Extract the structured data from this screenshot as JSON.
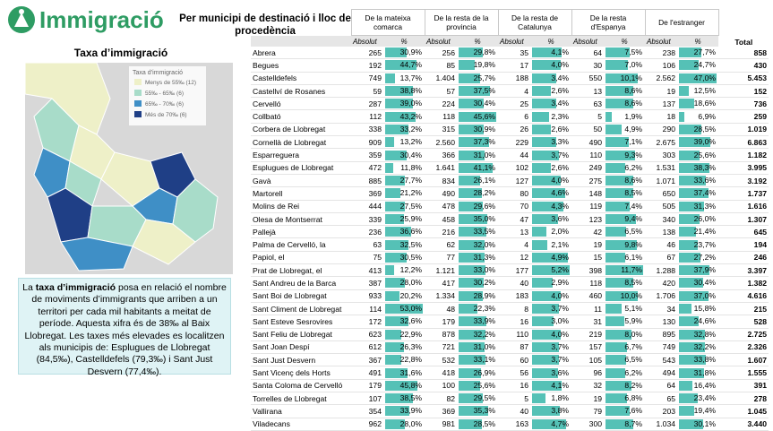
{
  "logo": "Immigració",
  "map": {
    "title": "Taxa d’immigració",
    "legend": {
      "title": "Taxa d’immigració",
      "items": [
        "Menys de 55‰ (12)",
        "55‰ - 65‰ (6)",
        "65‰ - 70‰ (6)",
        "Més de 70‰ (6)"
      ]
    }
  },
  "note": {
    "before": "La ",
    "bold": "taxa d’immigració",
    "after": " posa en relació el nombre de moviments d’immigrants que arriben a un territori per cada mil habitants a meitat de període. Aquesta xifra és de 38‰ al Baix Llobregat. Les taxes més elevades es localitzen als municipis de: Esplugues de Llobregat (84,5‰), Castelldefels (79,3‰) i Sant Just Desvern (77,4‰)."
  },
  "table": {
    "title": "Per municipi de destinació i lloc de procedència",
    "groups": [
      "De la mateixa comarca",
      "De la resta de la provincia",
      "De la resta de Catalunya",
      "De la resta d'Espanya",
      "De l'estranger"
    ],
    "total": "Total",
    "sub": [
      "Absolut",
      "%"
    ],
    "rows": [
      [
        "Abrera",
        "265",
        "30,9%",
        "256",
        "29,8%",
        "35",
        "4,1%",
        "64",
        "7,5%",
        "238",
        "27,7%",
        "858"
      ],
      [
        "Begues",
        "192",
        "44,7%",
        "85",
        "19,8%",
        "17",
        "4,0%",
        "30",
        "7,0%",
        "106",
        "24,7%",
        "430"
      ],
      [
        "Castelldefels",
        "749",
        "13,7%",
        "1.404",
        "25,7%",
        "188",
        "3,4%",
        "550",
        "10,1%",
        "2.562",
        "47,0%",
        "5.453"
      ],
      [
        "Castellví de Rosanes",
        "59",
        "38,8%",
        "57",
        "37,5%",
        "4",
        "2,6%",
        "13",
        "8,6%",
        "19",
        "12,5%",
        "152"
      ],
      [
        "Cervelló",
        "287",
        "39,0%",
        "224",
        "30,4%",
        "25",
        "3,4%",
        "63",
        "8,6%",
        "137",
        "18,6%",
        "736"
      ],
      [
        "Collbató",
        "112",
        "43,2%",
        "118",
        "45,6%",
        "6",
        "2,3%",
        "5",
        "1,9%",
        "18",
        "6,9%",
        "259"
      ],
      [
        "Corbera de Llobregat",
        "338",
        "33,2%",
        "315",
        "30,9%",
        "26",
        "2,6%",
        "50",
        "4,9%",
        "290",
        "28,5%",
        "1.019"
      ],
      [
        "Cornellà de Llobregat",
        "909",
        "13,2%",
        "2.560",
        "37,3%",
        "229",
        "3,3%",
        "490",
        "7,1%",
        "2.675",
        "39,0%",
        "6.863"
      ],
      [
        "Esparreguera",
        "359",
        "30,4%",
        "366",
        "31,0%",
        "44",
        "3,7%",
        "110",
        "9,3%",
        "303",
        "25,6%",
        "1.182"
      ],
      [
        "Esplugues de Llobregat",
        "472",
        "11,8%",
        "1.641",
        "41,1%",
        "102",
        "2,6%",
        "249",
        "6,2%",
        "1.531",
        "38,3%",
        "3.995"
      ],
      [
        "Gavà",
        "885",
        "27,7%",
        "834",
        "26,1%",
        "127",
        "4,0%",
        "275",
        "8,6%",
        "1.071",
        "33,6%",
        "3.192"
      ],
      [
        "Martorell",
        "369",
        "21,2%",
        "490",
        "28,2%",
        "80",
        "4,6%",
        "148",
        "8,5%",
        "650",
        "37,4%",
        "1.737"
      ],
      [
        "Molins de Rei",
        "444",
        "27,5%",
        "478",
        "29,6%",
        "70",
        "4,3%",
        "119",
        "7,4%",
        "505",
        "31,3%",
        "1.616"
      ],
      [
        "Olesa de Montserrat",
        "339",
        "25,9%",
        "458",
        "35,0%",
        "47",
        "3,6%",
        "123",
        "9,4%",
        "340",
        "26,0%",
        "1.307"
      ],
      [
        "Pallejà",
        "236",
        "36,6%",
        "216",
        "33,5%",
        "13",
        "2,0%",
        "42",
        "6,5%",
        "138",
        "21,4%",
        "645"
      ],
      [
        "Palma de Cervelló, la",
        "63",
        "32,5%",
        "62",
        "32,0%",
        "4",
        "2,1%",
        "19",
        "9,8%",
        "46",
        "23,7%",
        "194"
      ],
      [
        "Papiol, el",
        "75",
        "30,5%",
        "77",
        "31,3%",
        "12",
        "4,9%",
        "15",
        "6,1%",
        "67",
        "27,2%",
        "246"
      ],
      [
        "Prat de Llobregat, el",
        "413",
        "12,2%",
        "1.121",
        "33,0%",
        "177",
        "5,2%",
        "398",
        "11,7%",
        "1.288",
        "37,9%",
        "3.397"
      ],
      [
        "Sant Andreu de la Barca",
        "387",
        "28,0%",
        "417",
        "30,2%",
        "40",
        "2,9%",
        "118",
        "8,5%",
        "420",
        "30,4%",
        "1.382"
      ],
      [
        "Sant Boi de Llobregat",
        "933",
        "20,2%",
        "1.334",
        "28,9%",
        "183",
        "4,0%",
        "460",
        "10,0%",
        "1.706",
        "37,0%",
        "4.616"
      ],
      [
        "Sant Climent de Llobregat",
        "114",
        "53,0%",
        "48",
        "22,3%",
        "8",
        "3,7%",
        "11",
        "5,1%",
        "34",
        "15,8%",
        "215"
      ],
      [
        "Sant Esteve Sesrovires",
        "172",
        "32,6%",
        "179",
        "33,9%",
        "16",
        "3,0%",
        "31",
        "5,9%",
        "130",
        "24,6%",
        "528"
      ],
      [
        "Sant Feliu de Llobregat",
        "623",
        "22,9%",
        "878",
        "32,2%",
        "110",
        "4,0%",
        "219",
        "8,0%",
        "895",
        "32,8%",
        "2.725"
      ],
      [
        "Sant Joan Despí",
        "612",
        "26,3%",
        "721",
        "31,0%",
        "87",
        "3,7%",
        "157",
        "6,7%",
        "749",
        "32,2%",
        "2.326"
      ],
      [
        "Sant Just Desvern",
        "367",
        "22,8%",
        "532",
        "33,1%",
        "60",
        "3,7%",
        "105",
        "6,5%",
        "543",
        "33,8%",
        "1.607"
      ],
      [
        "Sant Vicenç dels Horts",
        "491",
        "31,6%",
        "418",
        "26,9%",
        "56",
        "3,6%",
        "96",
        "6,2%",
        "494",
        "31,8%",
        "1.555"
      ],
      [
        "Santa Coloma de Cervelló",
        "179",
        "45,8%",
        "100",
        "25,6%",
        "16",
        "4,1%",
        "32",
        "8,2%",
        "64",
        "16,4%",
        "391"
      ],
      [
        "Torrelles de Llobregat",
        "107",
        "38,5%",
        "82",
        "29,5%",
        "5",
        "1,8%",
        "19",
        "6,8%",
        "65",
        "23,4%",
        "278"
      ],
      [
        "Vallirana",
        "354",
        "33,9%",
        "369",
        "35,3%",
        "40",
        "3,8%",
        "79",
        "7,6%",
        "203",
        "19,4%",
        "1.045"
      ],
      [
        "Viladecans",
        "962",
        "28,0%",
        "981",
        "28,5%",
        "163",
        "4,7%",
        "300",
        "8,7%",
        "1.034",
        "30,1%",
        "3.440"
      ]
    ]
  }
}
